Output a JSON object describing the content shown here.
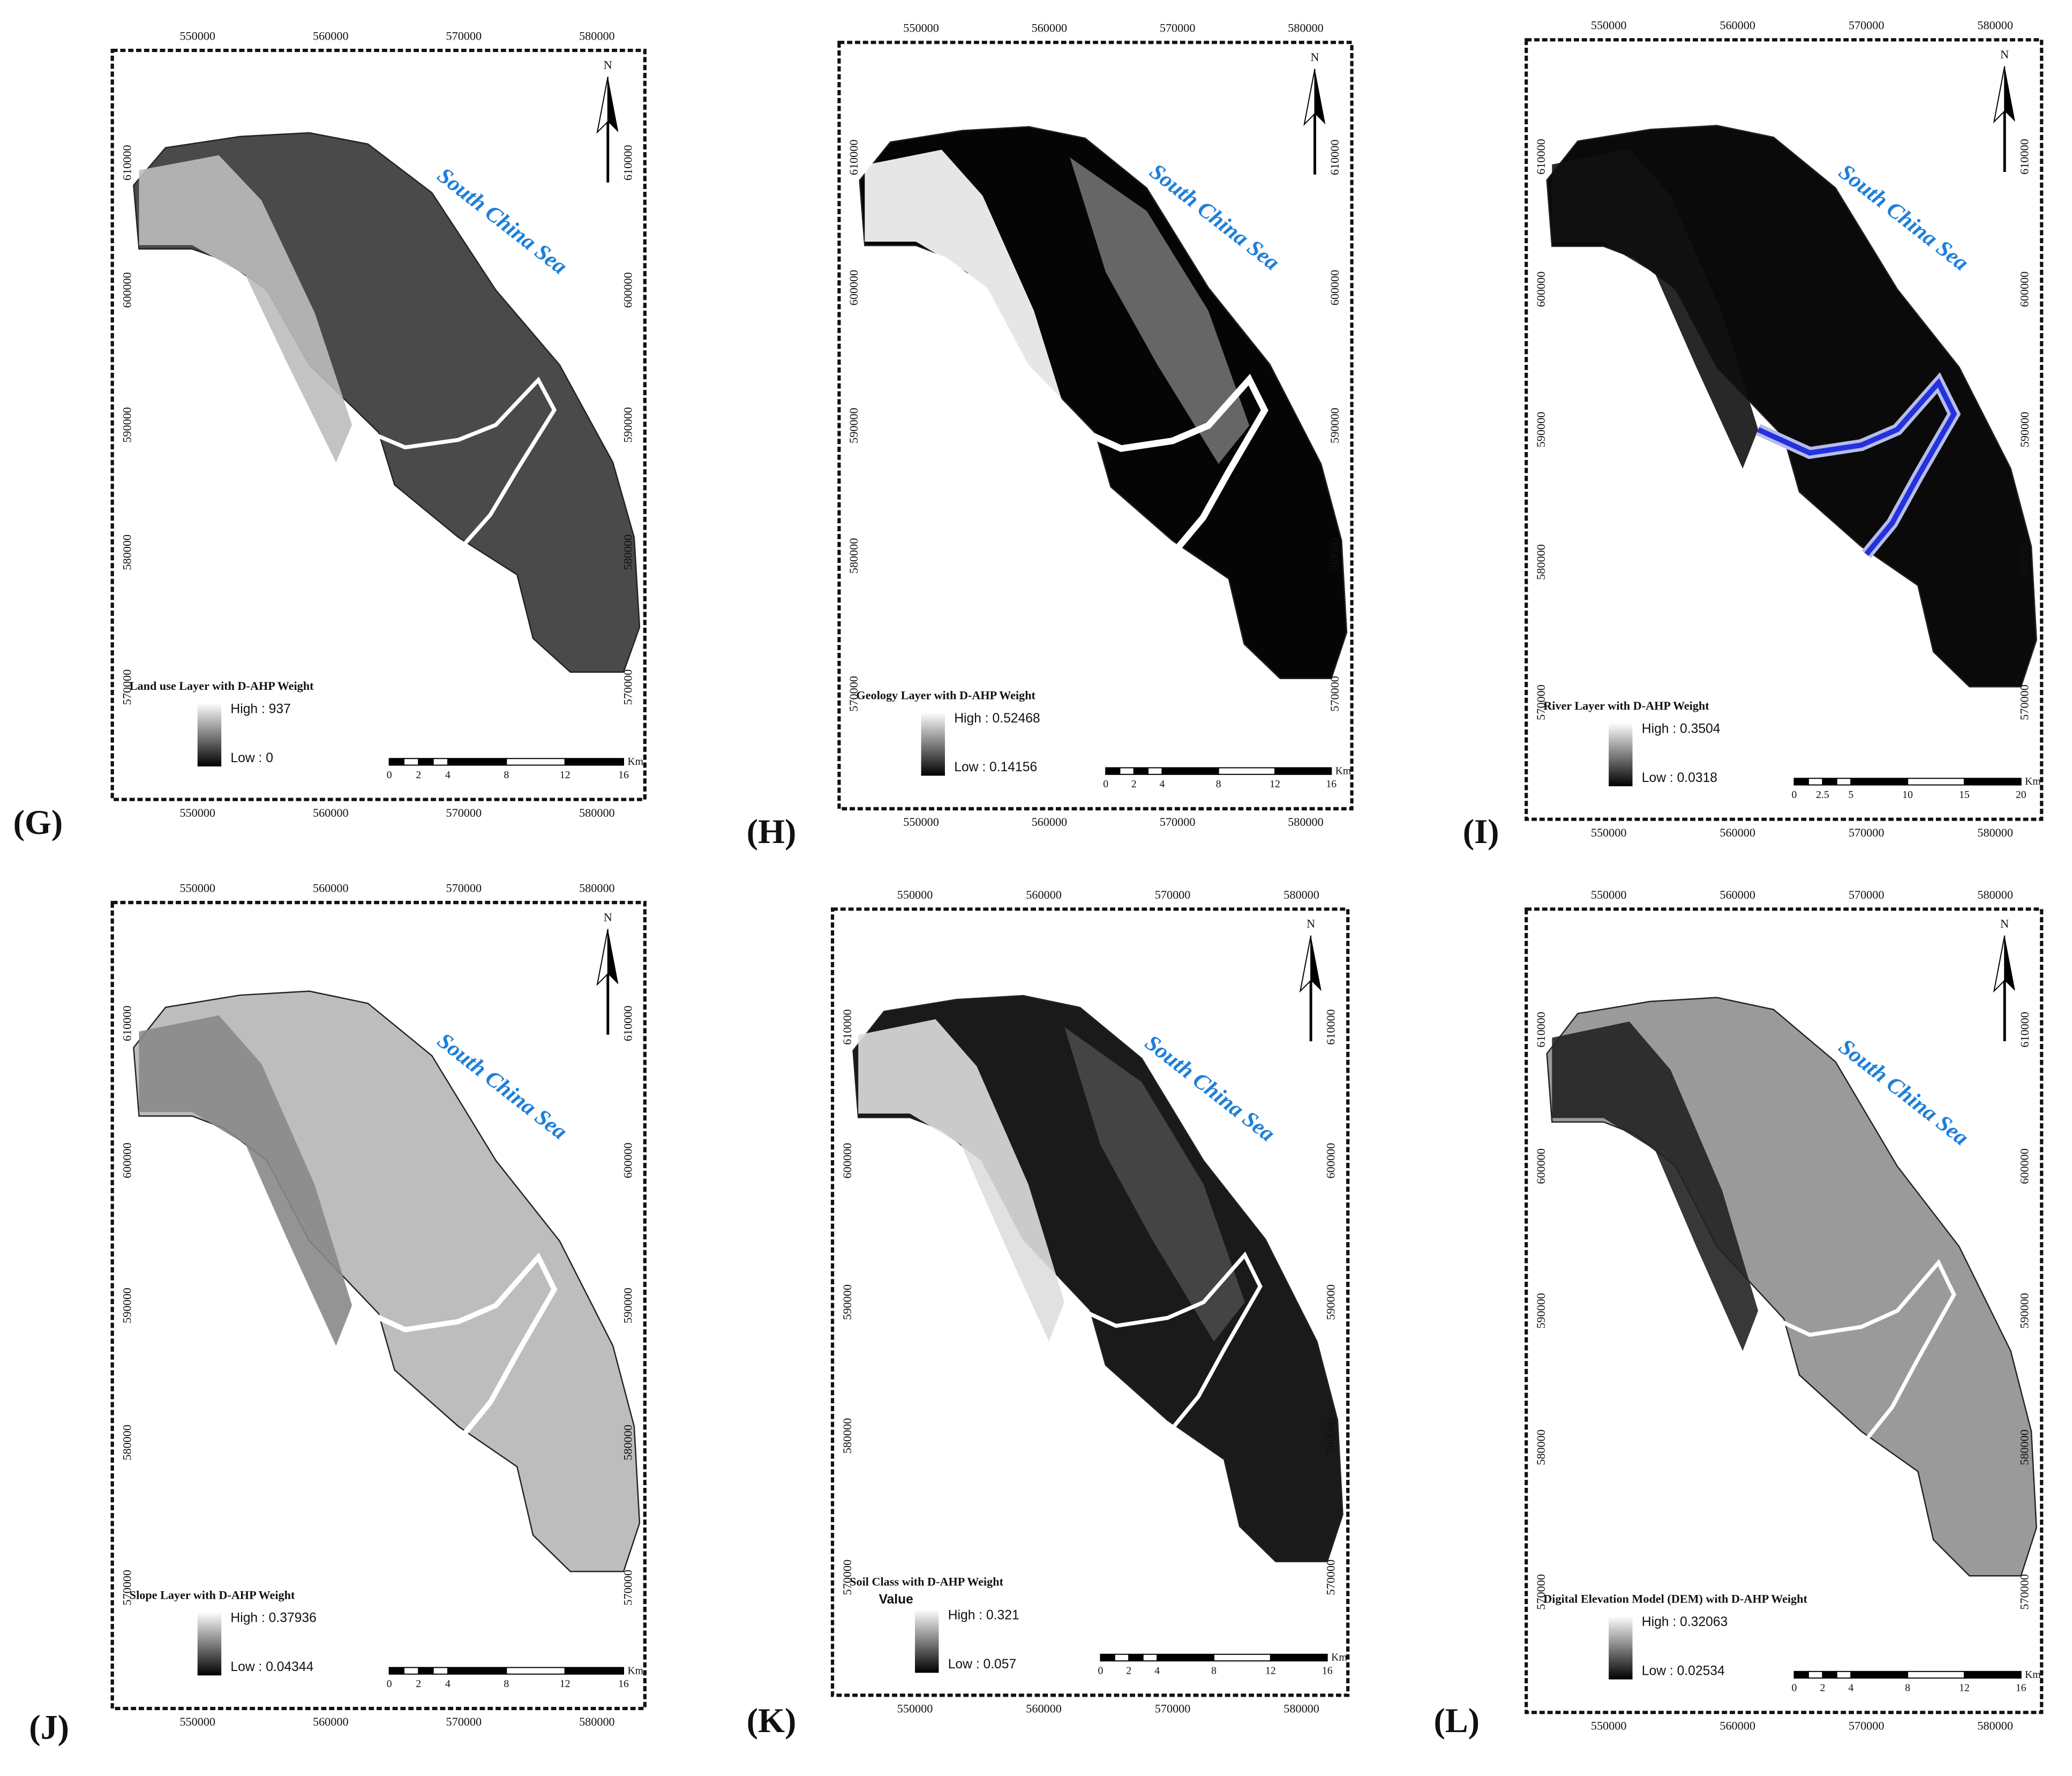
{
  "panels": [
    {
      "label": "(G)",
      "sea_label": "South China Sea",
      "north": "N",
      "legend_title": "Land use Layer with D-AHP Weight",
      "legend_high": "High : 937",
      "legend_low": "Low : 0",
      "scale_labels": [
        "0",
        "2",
        "4",
        "8",
        "12",
        "16"
      ],
      "scale_unit": "Km",
      "x_top": [
        "550000",
        "560000",
        "570000",
        "580000"
      ],
      "x_bottom": [
        "550000",
        "560000",
        "570000",
        "580000"
      ],
      "y_left": [
        "610000",
        "600000",
        "590000",
        "580000",
        "570000"
      ],
      "y_right": [
        "610000",
        "600000",
        "590000",
        "580000",
        "570000"
      ]
    },
    {
      "label": "(H)",
      "sea_label": "South China Sea",
      "north": "N",
      "legend_title": "Geology Layer with D-AHP Weight",
      "legend_high": "High : 0.52468",
      "legend_low": "Low : 0.14156",
      "scale_labels": [
        "0",
        "2",
        "4",
        "8",
        "12",
        "16"
      ],
      "scale_unit": "Km",
      "x_top": [
        "550000",
        "560000",
        "570000",
        "580000"
      ],
      "x_bottom": [
        "550000",
        "560000",
        "570000",
        "580000"
      ],
      "y_left": [
        "610000",
        "600000",
        "590000",
        "580000",
        "570000"
      ],
      "y_right": [
        "610000",
        "600000",
        "590000",
        "580000",
        "570000"
      ]
    },
    {
      "label": "(I)",
      "sea_label": "South China Sea",
      "north": "N",
      "legend_title": "River Layer with D-AHP Weight",
      "legend_high": "High : 0.3504",
      "legend_low": "Low : 0.0318",
      "scale_labels": [
        "0",
        "2.5",
        "5",
        "10",
        "15",
        "20"
      ],
      "scale_unit": "Km",
      "x_top": [
        "550000",
        "560000",
        "570000",
        "580000"
      ],
      "x_bottom": [
        "550000",
        "560000",
        "570000",
        "580000"
      ],
      "y_left": [
        "610000",
        "600000",
        "590000",
        "580000",
        "570000"
      ],
      "y_right": [
        "610000",
        "600000",
        "590000",
        "580000",
        "570000"
      ]
    },
    {
      "label": "(J)",
      "sea_label": "South China Sea",
      "north": "N",
      "legend_title": "Slope Layer with D-AHP Weight",
      "legend_high": "High : 0.37936",
      "legend_low": "Low : 0.04344",
      "scale_labels": [
        "0",
        "2",
        "4",
        "8",
        "12",
        "16"
      ],
      "scale_unit": "Km",
      "x_top": [
        "550000",
        "560000",
        "570000",
        "580000"
      ],
      "x_bottom": [
        "550000",
        "560000",
        "570000",
        "580000"
      ],
      "y_left": [
        "610000",
        "600000",
        "590000",
        "580000",
        "570000"
      ],
      "y_right": [
        "610000",
        "600000",
        "590000",
        "580000",
        "570000"
      ]
    },
    {
      "label": "(K)",
      "sea_label": "South China Sea",
      "north": "N",
      "legend_title": "Soil Class with D-AHP Weight",
      "legend_heading": "Value",
      "legend_high": "High : 0.321",
      "legend_low": "Low : 0.057",
      "scale_labels": [
        "0",
        "2",
        "4",
        "8",
        "12",
        "16"
      ],
      "scale_unit": "Km",
      "x_top": [
        "550000",
        "560000",
        "570000",
        "580000"
      ],
      "x_bottom": [
        "550000",
        "560000",
        "570000",
        "580000"
      ],
      "y_left": [
        "610000",
        "600000",
        "590000",
        "580000",
        "570000"
      ],
      "y_right": [
        "610000",
        "600000",
        "590000",
        "580000",
        "570000"
      ]
    },
    {
      "label": "(L)",
      "sea_label": "South China Sea",
      "north": "N",
      "legend_title": "Digital Elevation Model (DEM) with D-AHP Weight",
      "legend_high": "High : 0.32063",
      "legend_low": "Low : 0.02534",
      "scale_labels": [
        "0",
        "2",
        "4",
        "8",
        "12",
        "16"
      ],
      "scale_unit": "Km",
      "x_top": [
        "550000",
        "560000",
        "570000",
        "580000"
      ],
      "x_bottom": [
        "550000",
        "560000",
        "570000",
        "580000"
      ],
      "y_left": [
        "610000",
        "600000",
        "590000",
        "580000",
        "570000"
      ],
      "y_right": [
        "610000",
        "600000",
        "590000",
        "580000",
        "570000"
      ]
    }
  ]
}
